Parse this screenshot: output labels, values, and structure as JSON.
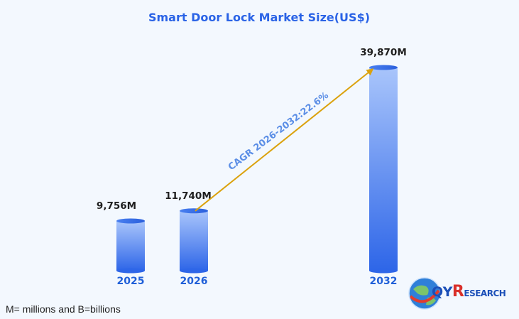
{
  "chart_data": {
    "type": "bar",
    "title": "Smart Door Lock Market Size(US$)",
    "categories": [
      "2025",
      "2026",
      "2032"
    ],
    "values": [
      9756,
      11740,
      39870
    ],
    "value_labels": [
      "9,756M",
      "11,740M",
      "39,870M"
    ],
    "unit": "M",
    "ylim": [
      0,
      39870
    ],
    "annotation": "CAGR 2026-2032:22.6%",
    "xlabel": "",
    "ylabel": ""
  },
  "footnote": "M= millions and B=billions",
  "logo": {
    "first": "QY",
    "r": "R",
    "rest": "ESEARCH",
    "colors": {
      "blue": "#1b4fb8",
      "red": "#d9302a"
    }
  },
  "colors": {
    "bar_top": "#a6c2fb",
    "bar_bottom": "#2f68e8",
    "arrow": "#dba20d",
    "title": "#2a63e6"
  }
}
